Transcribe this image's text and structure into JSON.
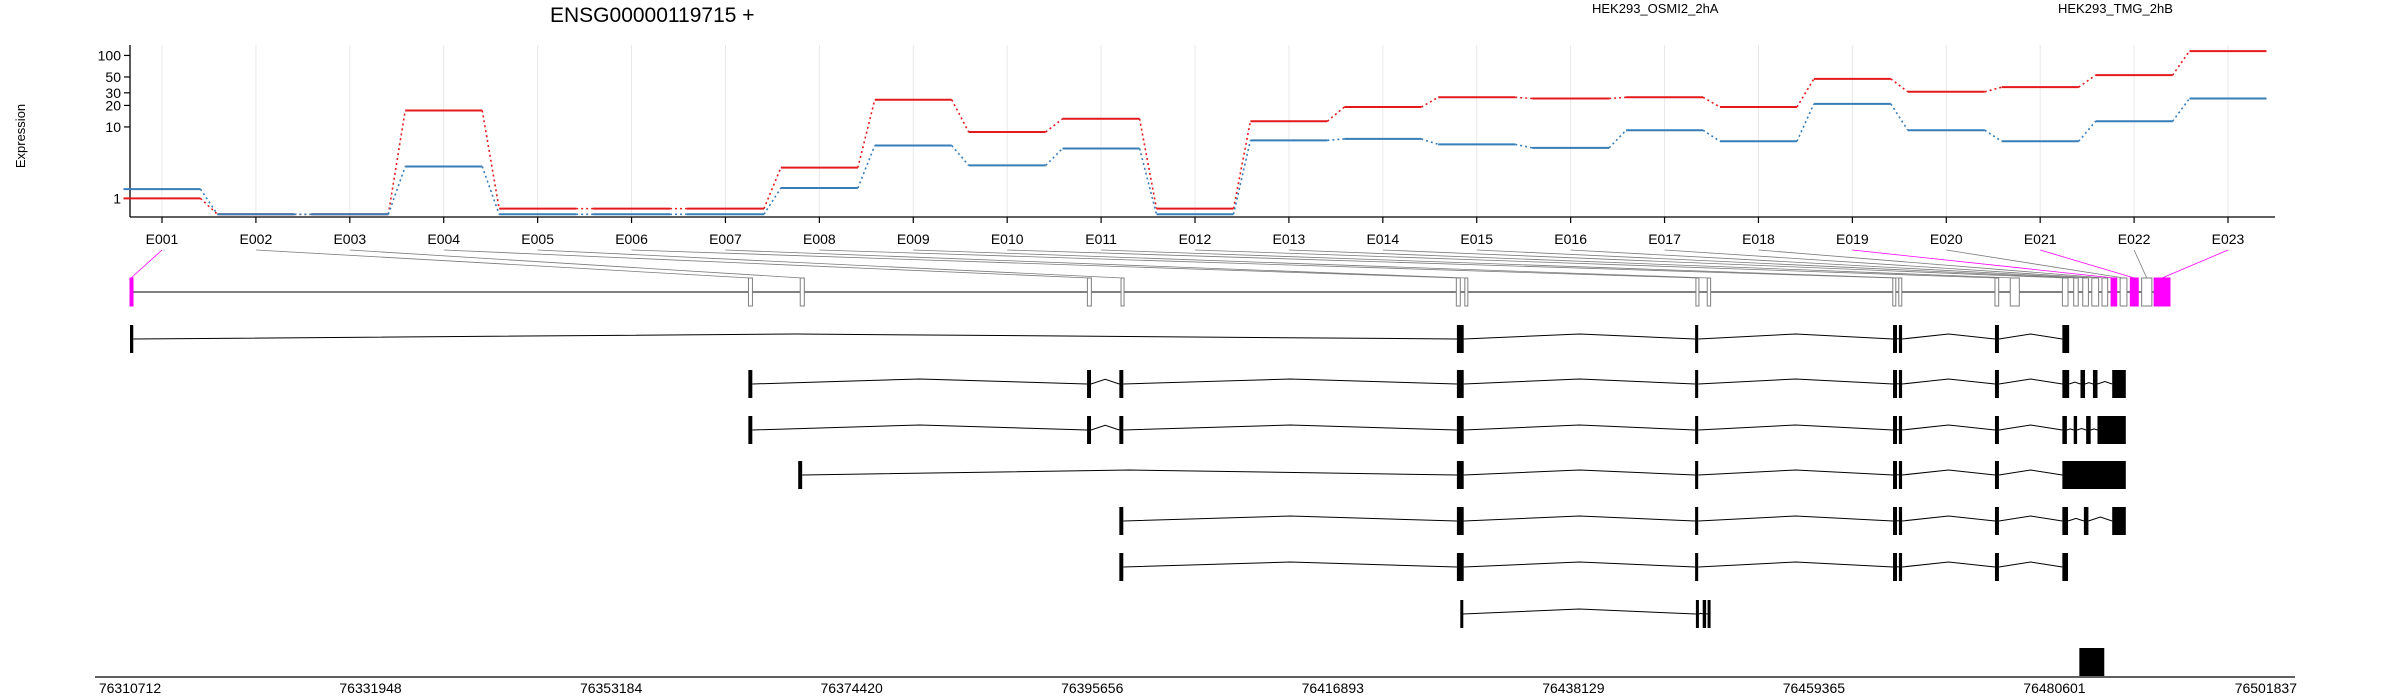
{
  "chart_data": {
    "type": "line",
    "title": "ENSG00000119715 +",
    "ylabel": "Expression",
    "yscale": "log",
    "ylim": [
      0.55,
      140
    ],
    "yticks": [
      1,
      10,
      20,
      30,
      50,
      100
    ],
    "ytick_labels": [
      "1",
      "10",
      "20",
      "30",
      "50",
      "100"
    ],
    "categories": [
      "E001",
      "E002",
      "E003",
      "E004",
      "E005",
      "E006",
      "E007",
      "E008",
      "E009",
      "E010",
      "E011",
      "E012",
      "E013",
      "E014",
      "E015",
      "E016",
      "E017",
      "E018",
      "E019",
      "E020",
      "E021",
      "E022",
      "E023"
    ],
    "series": [
      {
        "name": "HEK293_OSMI2_2hA",
        "color": "#e41a1c",
        "values": [
          1.0,
          0.6,
          0.6,
          17,
          0.72,
          0.72,
          0.72,
          2.7,
          24,
          8.5,
          13,
          0.72,
          12,
          19,
          26,
          25,
          26,
          19,
          47,
          31,
          36,
          53,
          115
        ]
      },
      {
        "name": "HEK293_TMG_2hB",
        "color": "#377eb8",
        "values": [
          1.35,
          0.6,
          0.6,
          2.8,
          0.6,
          0.6,
          0.6,
          1.4,
          5.5,
          2.9,
          5.0,
          0.6,
          6.5,
          6.8,
          5.7,
          5.1,
          9.0,
          6.3,
          21,
          9.0,
          6.3,
          12,
          25
        ]
      }
    ],
    "genomic_axis": {
      "start": 76310712,
      "end": 76501837,
      "tick_labels": [
        "76310712",
        "76331948",
        "76353184",
        "76374420",
        "76395656",
        "76416893",
        "76438129",
        "76459365",
        "76480601",
        "76501837"
      ]
    },
    "exon_bins": [
      [
        76310712,
        76310900
      ],
      [
        76365310,
        76365660
      ],
      [
        76369880,
        76370240
      ],
      [
        76395230,
        76395580
      ],
      [
        76398200,
        76398450
      ],
      [
        76427800,
        76428150
      ],
      [
        76428550,
        76428800
      ],
      [
        76448950,
        76449180
      ],
      [
        76449950,
        76450250
      ],
      [
        76466330,
        76466560
      ],
      [
        76466860,
        76467090
      ],
      [
        76475350,
        76475680
      ],
      [
        76476700,
        76477500
      ],
      [
        76481300,
        76481800
      ],
      [
        76482300,
        76482700
      ],
      [
        76483100,
        76483600
      ],
      [
        76483900,
        76484500
      ],
      [
        76484800,
        76485300
      ],
      [
        76485600,
        76486100
      ],
      [
        76486400,
        76487000
      ],
      [
        76487300,
        76488000
      ],
      [
        76488300,
        76489200
      ],
      [
        76489400,
        76490800
      ]
    ],
    "highlight_bins": [
      0,
      18,
      20,
      22
    ],
    "transcripts": [
      [
        [
          76310712,
          76311000
        ],
        [
          76427850,
          76428450
        ],
        [
          76448880,
          76449150
        ],
        [
          76466350,
          76466700
        ],
        [
          76466870,
          76467150
        ],
        [
          76475350,
          76475700
        ],
        [
          76481300,
          76481900
        ]
      ],
      [
        [
          76365300,
          76365650
        ],
        [
          76395200,
          76395550
        ],
        [
          76398050,
          76398400
        ],
        [
          76427850,
          76428450
        ],
        [
          76448880,
          76449150
        ],
        [
          76466350,
          76466700
        ],
        [
          76466870,
          76467150
        ],
        [
          76475350,
          76475700
        ],
        [
          76481300,
          76481900
        ],
        [
          76482900,
          76483300
        ],
        [
          76484000,
          76484400
        ],
        [
          76485700,
          76486900
        ]
      ],
      [
        [
          76365300,
          76365650
        ],
        [
          76395200,
          76395550
        ],
        [
          76398050,
          76398400
        ],
        [
          76427850,
          76428450
        ],
        [
          76448880,
          76449150
        ],
        [
          76466350,
          76466700
        ],
        [
          76466870,
          76467150
        ],
        [
          76475350,
          76475700
        ],
        [
          76481300,
          76481700
        ],
        [
          76482300,
          76482600
        ],
        [
          76483400,
          76483800
        ],
        [
          76484400,
          76486900
        ]
      ],
      [
        [
          76369700,
          76370050
        ],
        [
          76427850,
          76428450
        ],
        [
          76448880,
          76449150
        ],
        [
          76466350,
          76466700
        ],
        [
          76466870,
          76467150
        ],
        [
          76475350,
          76475700
        ],
        [
          76481300,
          76486900
        ]
      ],
      [
        [
          76398050,
          76398400
        ],
        [
          76427850,
          76428450
        ],
        [
          76448880,
          76449150
        ],
        [
          76466350,
          76466700
        ],
        [
          76466870,
          76467150
        ],
        [
          76475350,
          76475700
        ],
        [
          76481300,
          76481800
        ],
        [
          76483200,
          76483600
        ],
        [
          76485700,
          76486900
        ]
      ],
      [
        [
          76398050,
          76398400
        ],
        [
          76427850,
          76428450
        ],
        [
          76448880,
          76449150
        ],
        [
          76466350,
          76466700
        ],
        [
          76466870,
          76467150
        ],
        [
          76475350,
          76475700
        ],
        [
          76481300,
          76481800
        ]
      ],
      [
        [
          76428150,
          76428350
        ],
        [
          76448950,
          76449200
        ],
        [
          76449550,
          76449850
        ],
        [
          76449980,
          76450200
        ]
      ],
      [
        [
          76482800,
          76485000
        ]
      ]
    ]
  },
  "colors": {
    "axis": "#000000",
    "grid": "#e8e8e8",
    "highlight": "#ff00ff",
    "exon_outline": "#7f7f7f",
    "transcript": "#000000"
  }
}
